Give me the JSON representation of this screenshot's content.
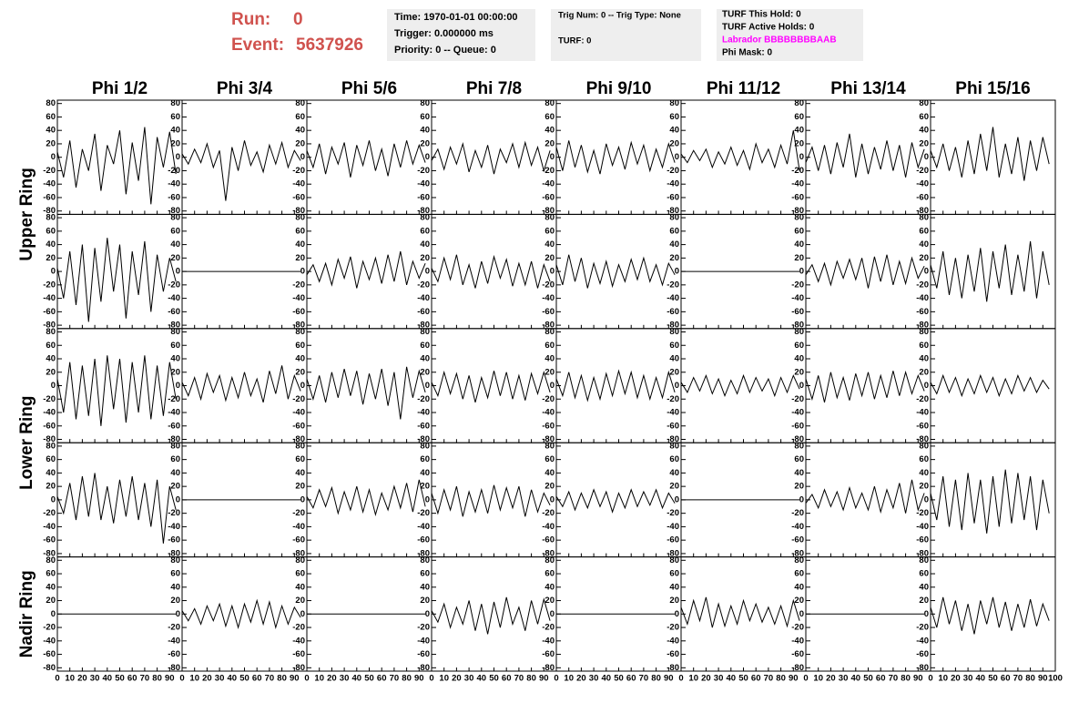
{
  "header": {
    "run_label": "Run:",
    "run": "0",
    "event_label": "Event:",
    "event": "5637926",
    "boxes": [
      [
        "Time: 1970-01-01 00:00:00",
        "Trigger: 0.000000 ms",
        "Priority: 0 -- Queue: 0"
      ],
      [
        "Trig Num: 0 -- Trig Type: None",
        "TURF: 0"
      ],
      [
        "TURF This Hold: 0",
        "TURF Active Holds: 0",
        "Labrador BBBBBBBBAAB",
        "Phi Mask: 0"
      ]
    ]
  },
  "chart_data": {
    "type": "line",
    "column_titles": [
      "Phi 1/2",
      "Phi 3/4",
      "Phi 5/6",
      "Phi 7/8",
      "Phi 9/10",
      "Phi 11/12",
      "Phi 13/14",
      "Phi 15/16"
    ],
    "row_titles": [
      "Upper Ring",
      "Lower Ring",
      "Nadir Ring"
    ],
    "color": "#000000",
    "xlim": [
      0,
      100
    ],
    "xticks": [
      0,
      10,
      20,
      30,
      40,
      50,
      60,
      70,
      80,
      90,
      100
    ],
    "ylim": [
      -85,
      85
    ],
    "yticks": [
      -80,
      -60,
      -40,
      -20,
      0,
      20,
      40,
      60,
      80
    ],
    "x": [
      0,
      5,
      10,
      15,
      20,
      25,
      30,
      35,
      40,
      45,
      50,
      55,
      60,
      65,
      70,
      75,
      80,
      85,
      90,
      95
    ],
    "panels": [
      [
        8,
        -30,
        25,
        -45,
        12,
        -20,
        35,
        -50,
        18,
        -10,
        40,
        -55,
        22,
        -35,
        45,
        -70,
        30,
        -15,
        38,
        -25
      ],
      [
        5,
        -10,
        12,
        -8,
        20,
        -15,
        10,
        -65,
        15,
        -20,
        25,
        -12,
        8,
        -22,
        18,
        -10,
        22,
        -15,
        10,
        -5
      ],
      [
        10,
        -15,
        20,
        -25,
        15,
        -10,
        22,
        -30,
        18,
        -12,
        25,
        -20,
        12,
        -28,
        20,
        -15,
        25,
        -10,
        18,
        -8
      ],
      [
        -5,
        12,
        -18,
        15,
        -10,
        20,
        -22,
        10,
        -15,
        18,
        -25,
        12,
        -8,
        20,
        -15,
        22,
        -12,
        15,
        -20,
        10
      ],
      [
        15,
        -20,
        25,
        -15,
        18,
        -22,
        10,
        -25,
        20,
        -12,
        15,
        -18,
        22,
        -10,
        18,
        -20,
        12,
        -15,
        20,
        -8
      ],
      [
        5,
        -8,
        10,
        -5,
        12,
        -15,
        8,
        -10,
        15,
        -12,
        10,
        -18,
        20,
        -8,
        12,
        -15,
        18,
        -10,
        40,
        -20
      ],
      [
        -8,
        15,
        -20,
        18,
        -25,
        22,
        -15,
        35,
        -30,
        20,
        -25,
        15,
        -18,
        25,
        -20,
        18,
        -30,
        22,
        -15,
        12
      ],
      [
        10,
        -15,
        20,
        -20,
        15,
        -30,
        25,
        -25,
        35,
        -20,
        45,
        -30,
        20,
        -25,
        30,
        -35,
        25,
        -20,
        30,
        -10
      ],
      [
        5,
        -40,
        30,
        -50,
        40,
        -75,
        35,
        -45,
        50,
        -30,
        40,
        -70,
        30,
        -35,
        45,
        -60,
        25,
        -30,
        20,
        -15
      ],
      [
        0,
        0,
        0,
        0,
        0,
        0,
        0,
        0,
        0,
        0,
        0,
        0,
        0,
        0,
        0,
        0,
        0,
        0,
        0,
        0
      ],
      [
        -5,
        10,
        -15,
        12,
        -20,
        18,
        -10,
        22,
        -25,
        15,
        -12,
        20,
        -18,
        25,
        -15,
        30,
        -20,
        15,
        -10,
        12
      ],
      [
        5,
        -15,
        20,
        -12,
        25,
        -20,
        10,
        -25,
        15,
        -18,
        22,
        -10,
        18,
        -22,
        12,
        -20,
        15,
        -25,
        10,
        -15
      ],
      [
        10,
        -20,
        25,
        -15,
        20,
        -25,
        12,
        -18,
        15,
        -22,
        10,
        -15,
        18,
        -12,
        20,
        -15,
        10,
        -20,
        12,
        -5
      ],
      [
        0,
        0,
        0,
        0,
        0,
        0,
        0,
        0,
        0,
        0,
        0,
        0,
        0,
        0,
        0,
        0,
        0,
        0,
        0,
        0
      ],
      [
        -5,
        10,
        -15,
        12,
        -20,
        15,
        -10,
        18,
        -12,
        20,
        -25,
        22,
        -15,
        25,
        -20,
        15,
        -18,
        20,
        -10,
        8
      ],
      [
        10,
        -25,
        30,
        -35,
        20,
        -40,
        25,
        -30,
        35,
        -45,
        30,
        -25,
        40,
        -35,
        25,
        -30,
        45,
        -40,
        30,
        -20
      ],
      [
        10,
        -40,
        35,
        -50,
        30,
        -45,
        40,
        -60,
        45,
        -35,
        40,
        -55,
        35,
        -40,
        45,
        -50,
        30,
        -45,
        35,
        -20
      ],
      [
        5,
        -15,
        12,
        -20,
        18,
        -10,
        15,
        -22,
        12,
        -18,
        20,
        -15,
        10,
        -25,
        22,
        -12,
        30,
        -20,
        15,
        -8
      ],
      [
        10,
        -20,
        15,
        -25,
        20,
        -18,
        25,
        -15,
        22,
        -28,
        18,
        -20,
        25,
        -30,
        20,
        -50,
        28,
        -18,
        22,
        -10
      ],
      [
        5,
        -15,
        20,
        -12,
        18,
        -20,
        15,
        -25,
        12,
        -18,
        22,
        -15,
        20,
        -20,
        15,
        -22,
        18,
        -12,
        20,
        -10
      ],
      [
        10,
        -15,
        20,
        -18,
        15,
        -22,
        12,
        -20,
        18,
        -15,
        22,
        -12,
        20,
        -18,
        15,
        -20,
        12,
        -18,
        20,
        -10
      ],
      [
        5,
        -10,
        12,
        -8,
        15,
        -12,
        10,
        -15,
        8,
        -12,
        15,
        -10,
        12,
        -8,
        10,
        -15,
        12,
        -10,
        15,
        -5
      ],
      [
        10,
        -20,
        15,
        -25,
        20,
        -18,
        12,
        -22,
        18,
        -15,
        20,
        -20,
        15,
        -18,
        22,
        -15,
        20,
        -12,
        15,
        -8
      ],
      [
        5,
        -12,
        15,
        -10,
        12,
        -15,
        10,
        -12,
        15,
        -10,
        12,
        -15,
        10,
        -12,
        15,
        -8,
        12,
        -10,
        8,
        -5
      ],
      [
        5,
        -20,
        25,
        -30,
        35,
        -25,
        40,
        -30,
        20,
        -35,
        30,
        -25,
        35,
        -30,
        25,
        -40,
        30,
        -65,
        20,
        -15
      ],
      [
        0,
        0,
        0,
        0,
        0,
        0,
        0,
        0,
        0,
        0,
        0,
        0,
        0,
        0,
        0,
        0,
        0,
        0,
        0,
        0
      ],
      [
        5,
        -12,
        15,
        -10,
        18,
        -20,
        12,
        -15,
        20,
        -18,
        15,
        -22,
        10,
        -15,
        20,
        -12,
        25,
        -18,
        30,
        -10
      ],
      [
        10,
        -20,
        15,
        -15,
        20,
        -25,
        12,
        -18,
        15,
        -20,
        22,
        -15,
        18,
        -12,
        20,
        -25,
        15,
        -18,
        10,
        -8
      ],
      [
        5,
        -10,
        12,
        -15,
        10,
        -12,
        15,
        -10,
        12,
        -18,
        10,
        -12,
        15,
        -10,
        12,
        -8,
        15,
        -12,
        10,
        -5
      ],
      [
        0,
        0,
        0,
        0,
        0,
        0,
        0,
        0,
        0,
        0,
        0,
        0,
        0,
        0,
        0,
        0,
        0,
        0,
        0,
        0
      ],
      [
        -5,
        8,
        -12,
        15,
        -10,
        12,
        -15,
        18,
        -12,
        10,
        -15,
        20,
        -18,
        15,
        -12,
        25,
        -20,
        30,
        -15,
        10
      ],
      [
        10,
        -30,
        35,
        -40,
        30,
        -45,
        40,
        -35,
        30,
        -50,
        35,
        -40,
        45,
        -35,
        40,
        -30,
        35,
        -45,
        30,
        -20
      ],
      [
        0,
        0,
        0,
        0,
        0,
        0,
        0,
        0,
        0,
        0,
        0,
        0,
        0,
        0,
        0,
        0,
        0,
        0,
        0,
        0
      ],
      [
        5,
        -10,
        8,
        -15,
        12,
        -10,
        15,
        -18,
        12,
        -20,
        15,
        -12,
        20,
        -15,
        18,
        -20,
        12,
        -15,
        10,
        -5
      ],
      [
        0,
        0,
        0,
        0,
        0,
        0,
        0,
        0,
        0,
        0,
        0,
        0,
        0,
        0,
        0,
        0,
        0,
        0,
        0,
        0
      ],
      [
        5,
        -12,
        15,
        -20,
        10,
        -15,
        20,
        -25,
        15,
        -30,
        18,
        -20,
        25,
        -15,
        10,
        -25,
        20,
        -15,
        22,
        -10
      ],
      [
        0,
        0,
        0,
        0,
        0,
        0,
        0,
        0,
        0,
        0,
        0,
        0,
        0,
        0,
        0,
        0,
        0,
        0,
        0,
        0
      ],
      [
        10,
        -15,
        20,
        -10,
        25,
        -20,
        15,
        -18,
        12,
        -15,
        20,
        -10,
        15,
        -12,
        10,
        -15,
        12,
        -18,
        20,
        -10
      ],
      [
        0,
        0,
        0,
        0,
        0,
        0,
        0,
        0,
        0,
        0,
        0,
        0,
        0,
        0,
        0,
        0,
        0,
        0,
        0,
        0
      ],
      [
        10,
        -20,
        25,
        -15,
        20,
        -25,
        15,
        -30,
        20,
        -15,
        25,
        -20,
        18,
        -25,
        15,
        -20,
        22,
        -18,
        15,
        -10
      ]
    ]
  }
}
